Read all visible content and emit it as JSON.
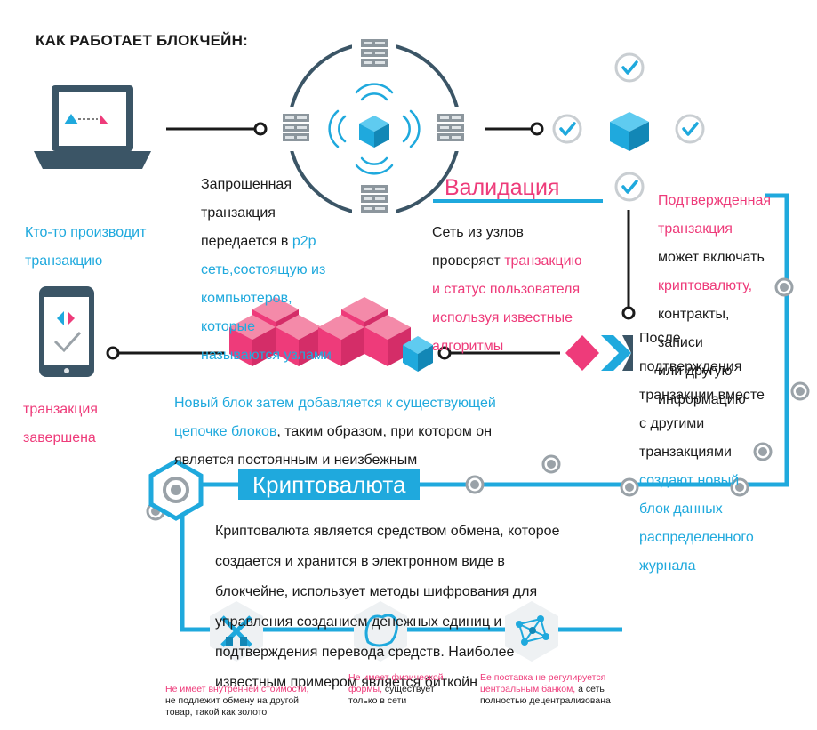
{
  "title": "КАК РАБОТАЕТ БЛОКЧЕЙН:",
  "initiate": {
    "line1": "Кто-то производит",
    "line2": "транзакцию"
  },
  "request": {
    "l1": "Запрошенная",
    "l2": "транзакция",
    "l3a": "передается в ",
    "l3b": "p2p",
    "l4": "сеть,состоящую из",
    "l5": "компьютеров,",
    "l6": "которые",
    "l7": "называются узлами"
  },
  "validation": {
    "banner": "Валидация",
    "l1": "Сеть из узлов",
    "l2a": "проверяет ",
    "l2b": "транзакцию",
    "l3": "и статус пользователя",
    "l4": "используя известные",
    "l5": "алгоритмы"
  },
  "verified": {
    "l1": "Подтвержденная",
    "l2": "транзакция",
    "l3": "может включать",
    "l4": "криптовалюту,",
    "l5": "контракты,",
    "l6": "записи",
    "l7": "или другую",
    "l8": "информацию"
  },
  "after": {
    "l1": "После",
    "l2": "подтверждения",
    "l3": "транзакции вместе",
    "l4": "с другими",
    "l5": "транзакциями",
    "l6": "создают новый",
    "l7": "блок данных",
    "l8": "распределенного",
    "l9": "журнала"
  },
  "newblock": {
    "l1": "Новый блок затем добавляется к существующей",
    "l2a": "цепочке блоков",
    "l2b": ", таким образом, при котором он",
    "l3": "является постоянным и неизбежным"
  },
  "complete": {
    "line1": "транзакция",
    "line2": "завершена"
  },
  "crypto": {
    "banner": "Криптовалюта",
    "l1": "Криптовалюта является средством обмена, которое",
    "l2": "создается и хранится в электронном виде в",
    "l3": "блокчейне, использует методы шифрования для",
    "l4": "управления созданием денежных единиц и",
    "l5": "подтверждения перевода средств. Наиболее",
    "l6": "известным примером является биткойн"
  },
  "features": [
    {
      "pink": "Не имеет внутренней стоимости,",
      "dark": "не подлежит обмену на другой\nтовар, такой как золото"
    },
    {
      "pink": "Не имеет физической\nформы,",
      "dark": " существует\nтолько в сети"
    },
    {
      "pink": "Ее поставка не регулируется\nцентральным банком,",
      "dark": " а сеть\nполностью децентрализована"
    }
  ],
  "colors": {
    "cyan": "#1fa9dd",
    "pink": "#ee3b7a",
    "dark": "#3b5566",
    "gray": "#9aa2a8"
  }
}
